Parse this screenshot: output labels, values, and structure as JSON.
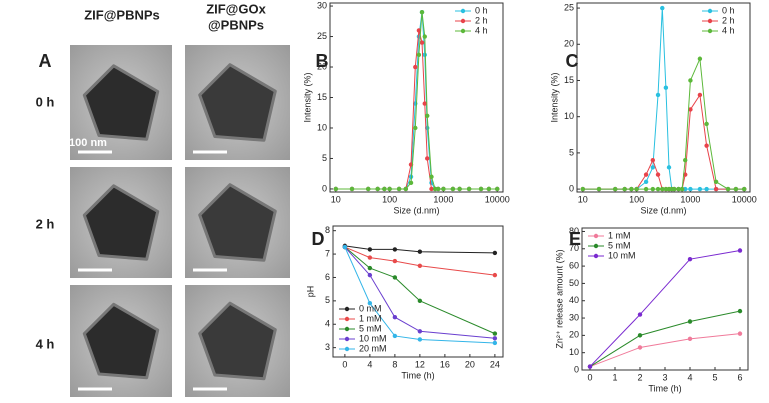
{
  "panel_a": {
    "label": "A",
    "columns": [
      [
        "ZIF@PBNPs"
      ],
      [
        "ZIF@GOx",
        "@PBNPs"
      ]
    ],
    "rows": [
      "0 h",
      "2 h",
      "4 h"
    ],
    "scale_bar": "100 nm"
  },
  "chart_data": [
    {
      "type": "line",
      "label": "B",
      "xlabel": "Size (d.nm)",
      "ylabel": "Intensity (%)",
      "xscale": "log",
      "x": [
        10,
        20,
        40,
        60,
        80,
        100,
        150,
        200,
        250,
        300,
        350,
        400,
        450,
        500,
        600,
        700,
        800,
        1000,
        1500,
        2000,
        3000,
        5000,
        7000,
        10000
      ],
      "series": [
        {
          "name": "0 h",
          "color": "#29c0e0",
          "values": [
            0,
            0,
            0,
            0,
            0,
            0,
            0,
            0,
            2,
            14,
            25,
            29,
            22,
            10,
            1,
            0,
            0,
            0,
            0,
            0,
            0,
            0,
            0,
            0
          ]
        },
        {
          "name": "2 h",
          "color": "#e8434a",
          "values": [
            0,
            0,
            0,
            0,
            0,
            0,
            0,
            0,
            4,
            20,
            26,
            24,
            14,
            5,
            0,
            0,
            0,
            0,
            0,
            0,
            0,
            0,
            0,
            0
          ]
        },
        {
          "name": "4 h",
          "color": "#5cb83a",
          "values": [
            0,
            0,
            0,
            0,
            0,
            0,
            0,
            0,
            1,
            10,
            22,
            29,
            25,
            12,
            2,
            0,
            0,
            0,
            0,
            0,
            0,
            0,
            0,
            0
          ]
        }
      ],
      "xlim": [
        7.8,
        12800
      ],
      "xticks": [
        10,
        100,
        1000,
        10000
      ],
      "ylim": [
        -0.5,
        30.5
      ],
      "yticks": [
        0,
        5,
        10,
        15,
        20,
        25,
        30
      ],
      "legend": "upper right"
    },
    {
      "type": "line",
      "label": "C",
      "xlabel": "Size (d.nm)",
      "ylabel": "Intensity (%)",
      "xscale": "log",
      "x": [
        10,
        20,
        40,
        60,
        80,
        100,
        150,
        200,
        250,
        300,
        350,
        400,
        450,
        500,
        600,
        700,
        800,
        1000,
        1500,
        2000,
        3000,
        5000,
        7000,
        10000
      ],
      "series": [
        {
          "name": "0 h",
          "color": "#29c0e0",
          "values": [
            0,
            0,
            0,
            0,
            0,
            0,
            1,
            3,
            13,
            25,
            14,
            3,
            0,
            0,
            0,
            0,
            0,
            0,
            0,
            0,
            0,
            0,
            0,
            0
          ]
        },
        {
          "name": "2 h",
          "color": "#e8434a",
          "values": [
            0,
            0,
            0,
            0,
            0,
            0,
            2,
            4,
            2,
            0,
            0,
            0,
            0,
            0,
            0,
            0,
            2,
            11,
            13,
            6,
            0,
            0,
            0,
            0
          ]
        },
        {
          "name": "4 h",
          "color": "#5cb83a",
          "values": [
            0,
            0,
            0,
            0,
            0,
            0,
            0,
            0,
            0,
            0,
            0,
            0,
            0,
            0,
            0,
            0,
            4,
            15,
            18,
            9,
            1,
            0,
            0,
            0
          ]
        }
      ],
      "xlim": [
        7.8,
        12800
      ],
      "xticks": [
        10,
        100,
        1000,
        10000
      ],
      "ylim": [
        -0.4,
        25.7
      ],
      "yticks": [
        0,
        5,
        10,
        15,
        20,
        25
      ],
      "legend": "upper right"
    },
    {
      "type": "line",
      "label": "D",
      "xlabel": "Time (h)",
      "ylabel": "pH",
      "x": [
        0,
        4,
        8,
        12,
        24
      ],
      "series": [
        {
          "name": "0 mM",
          "color": "#222222",
          "values": [
            7.35,
            7.2,
            7.2,
            7.1,
            7.05
          ]
        },
        {
          "name": "1 mM",
          "color": "#e84a4a",
          "values": [
            7.3,
            6.85,
            6.7,
            6.5,
            6.1
          ]
        },
        {
          "name": "5 mM",
          "color": "#2a8a2a",
          "values": [
            7.3,
            6.4,
            6.0,
            5.0,
            3.6
          ]
        },
        {
          "name": "10 mM",
          "color": "#6a3fcf",
          "values": [
            7.3,
            6.1,
            4.3,
            3.7,
            3.4
          ]
        },
        {
          "name": "20 mM",
          "color": "#33b5e8",
          "values": [
            7.3,
            4.9,
            3.5,
            3.35,
            3.2
          ]
        }
      ],
      "xlim": [
        -1.9,
        25.3
      ],
      "xticks": [
        0,
        4,
        8,
        12,
        16,
        20,
        24
      ],
      "ylim": [
        2.6,
        8.2
      ],
      "yticks": [
        3,
        4,
        5,
        6,
        7,
        8
      ],
      "legend": "lower left"
    },
    {
      "type": "line",
      "label": "E",
      "xlabel": "Time (h)",
      "ylabel": "Zn²⁺ release amount (%)",
      "x": [
        0,
        2,
        4,
        6
      ],
      "series": [
        {
          "name": "1 mM",
          "color": "#f07a9a",
          "values": [
            2,
            13,
            18,
            21
          ]
        },
        {
          "name": "5 mM",
          "color": "#2a8a2a",
          "values": [
            2,
            20,
            28,
            34
          ]
        },
        {
          "name": "10 mM",
          "color": "#7a2ad0",
          "values": [
            2,
            32,
            64,
            69
          ]
        }
      ],
      "xlim": [
        -0.32,
        6.32
      ],
      "xticks": [
        0,
        1,
        2,
        3,
        4,
        5,
        6
      ],
      "ylim": [
        0,
        82
      ],
      "yticks": [
        0,
        10,
        20,
        30,
        40,
        50,
        60,
        70,
        80
      ],
      "legend": "upper left"
    }
  ]
}
